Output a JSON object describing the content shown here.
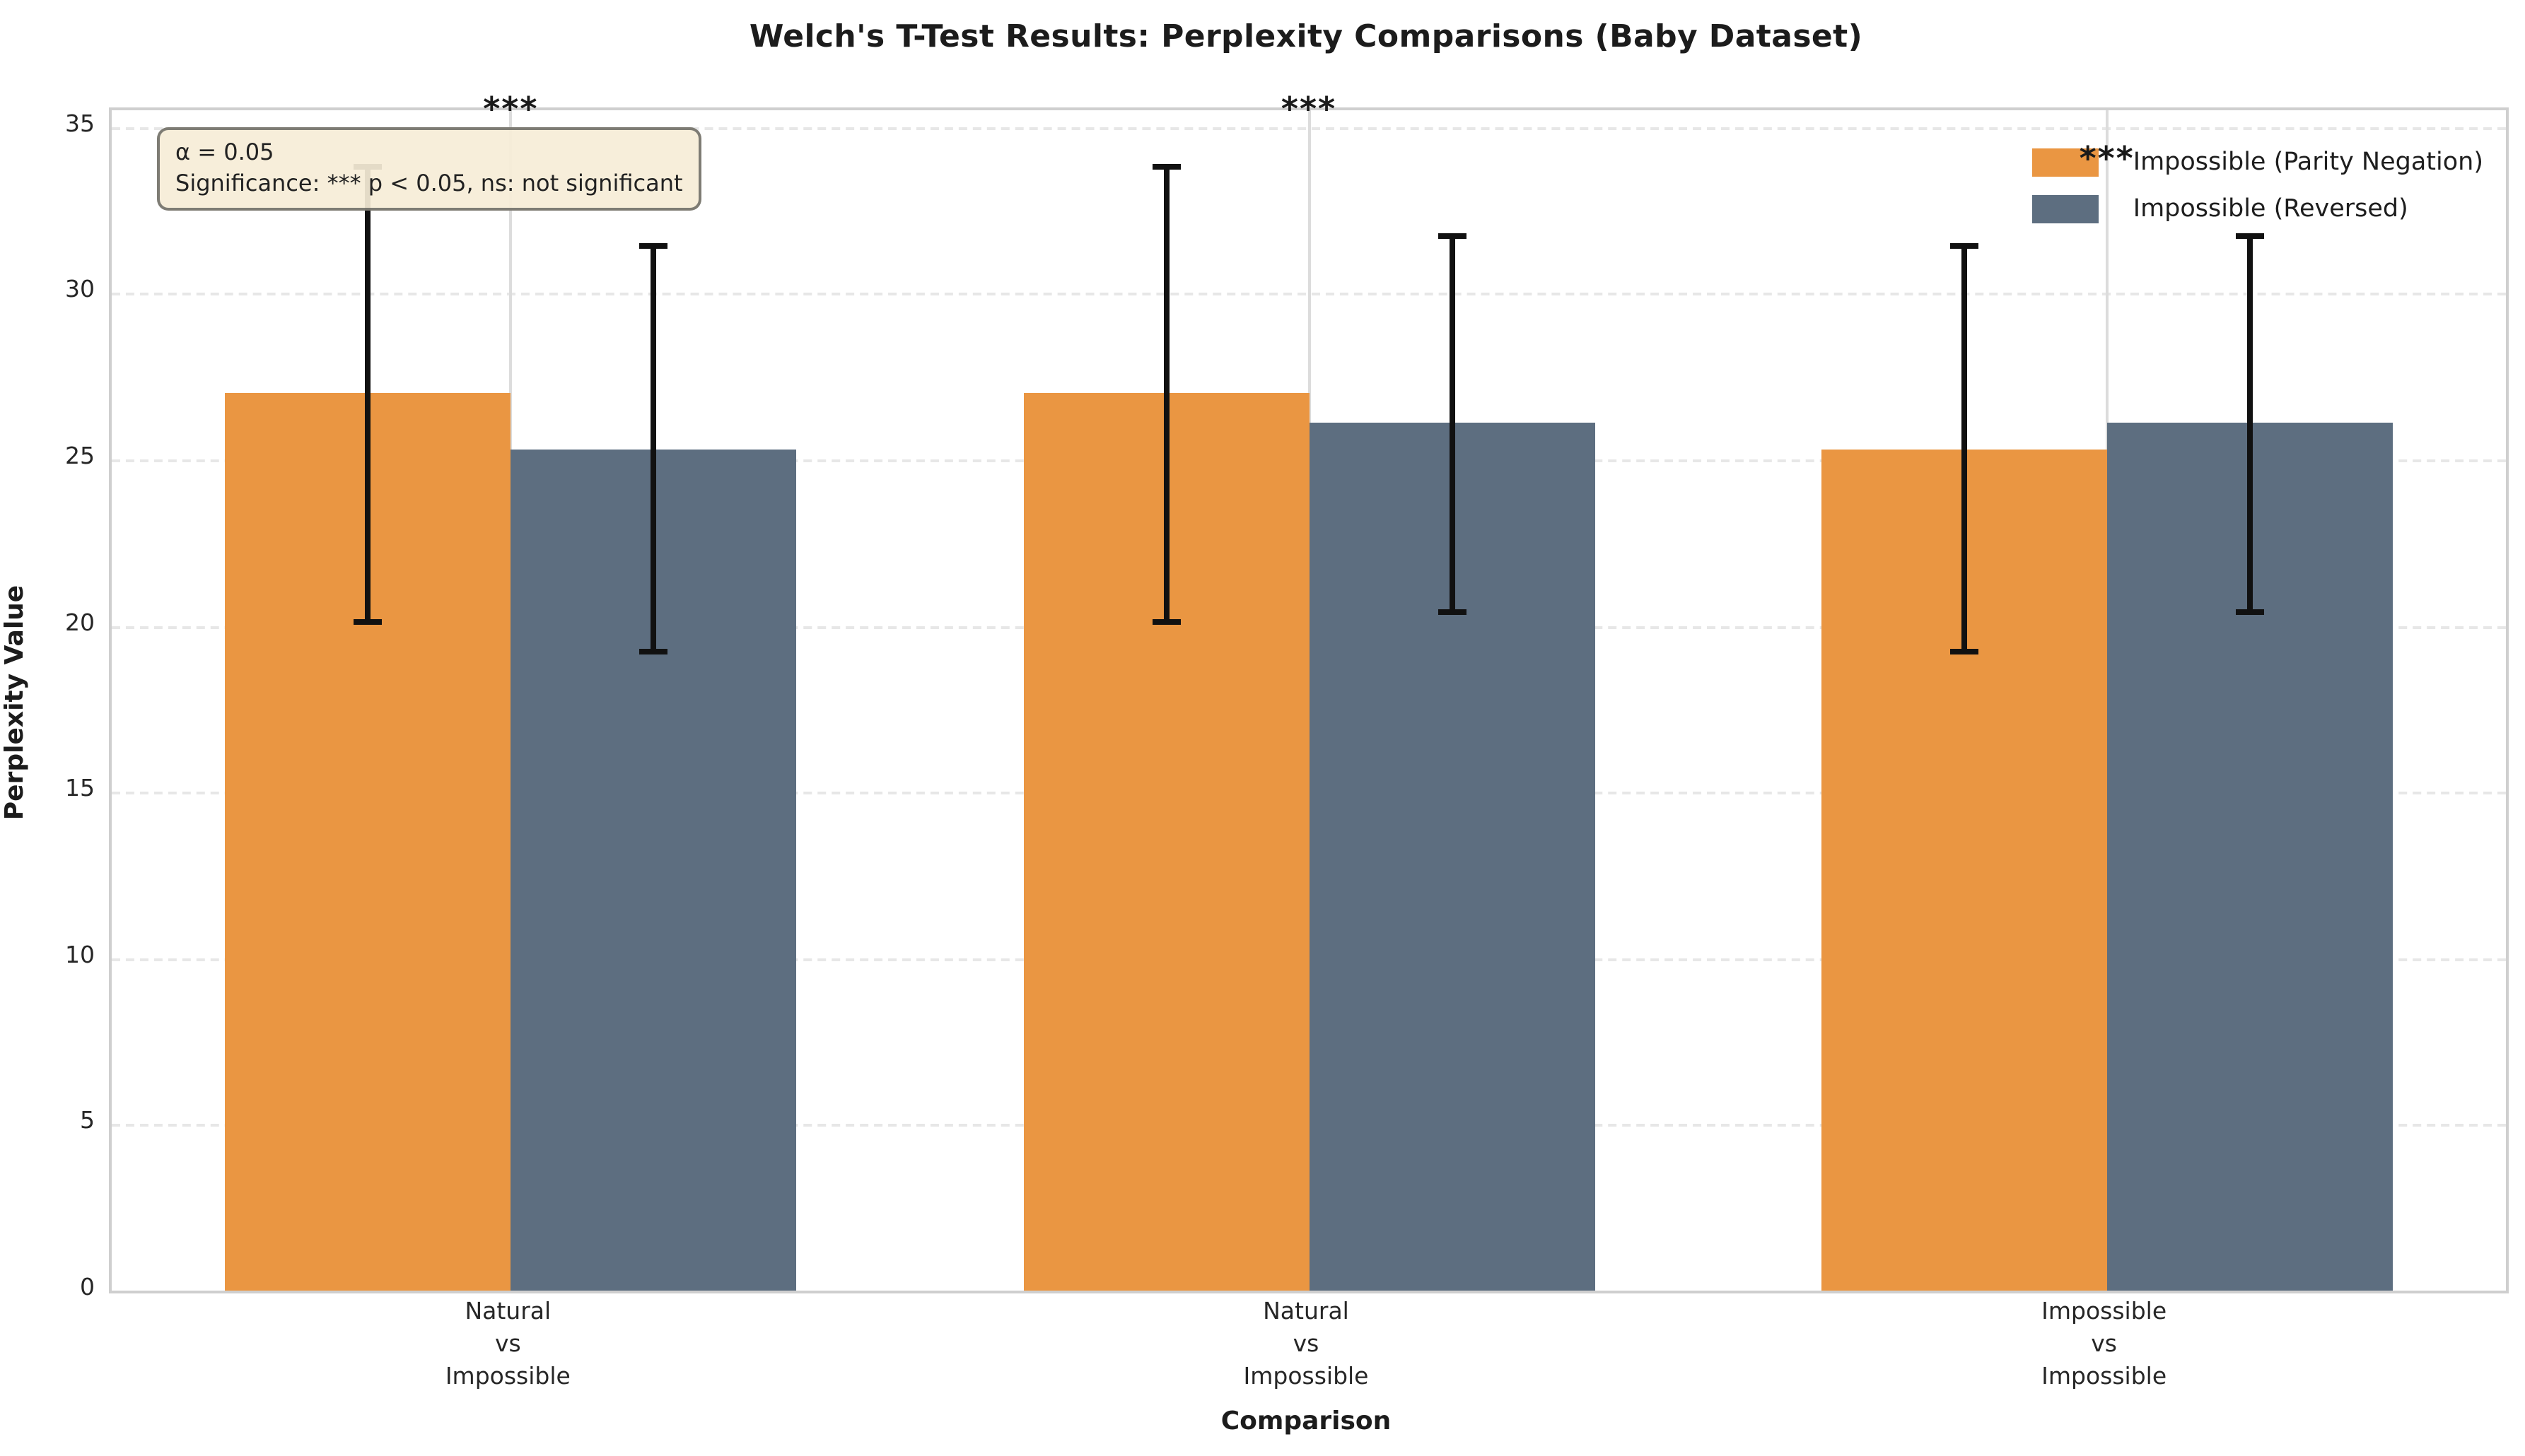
{
  "chart_data": {
    "type": "bar",
    "title": "Welch's T-Test Results: Perplexity Comparisons (Baby Dataset)",
    "xlabel": "Comparison",
    "ylabel": "Perplexity Value",
    "ylim": [
      0,
      35.5
    ],
    "yticks": [
      0,
      5,
      10,
      15,
      20,
      25,
      30,
      35
    ],
    "grid": "horizontal dashed gridlines at yticks, vertical light gridline at each category center",
    "legend_position": "upper right",
    "legend_frame": false,
    "categories": [
      [
        "Natural",
        "vs",
        "Impossible"
      ],
      [
        "Natural",
        "vs",
        "Impossible"
      ],
      [
        "Impossible",
        "vs",
        "Impossible"
      ]
    ],
    "series": [
      {
        "name": "Impossible (Parity Negation)",
        "color": "#ea9642",
        "values": [
          27.0,
          27.0,
          25.3
        ],
        "error_low": [
          20.1,
          20.1,
          19.2
        ],
        "error_high": [
          33.8,
          33.8,
          31.4
        ]
      },
      {
        "name": "Impossible (Reversed)",
        "color": "#5d6e80",
        "values": [
          25.3,
          26.1,
          26.1
        ],
        "error_low": [
          19.2,
          20.4,
          20.4
        ],
        "error_high": [
          31.4,
          31.7,
          31.7
        ]
      }
    ],
    "significance_markers": [
      {
        "label": "***",
        "y": 35.5
      },
      {
        "label": "***",
        "y": 35.5
      },
      {
        "label": "***",
        "y": 34.0
      }
    ],
    "annotation": {
      "line1": "α = 0.05",
      "line2": "Significance: *** p < 0.05, ns: not significant"
    },
    "errorbar_color": "#111111",
    "background": "#ffffff"
  }
}
